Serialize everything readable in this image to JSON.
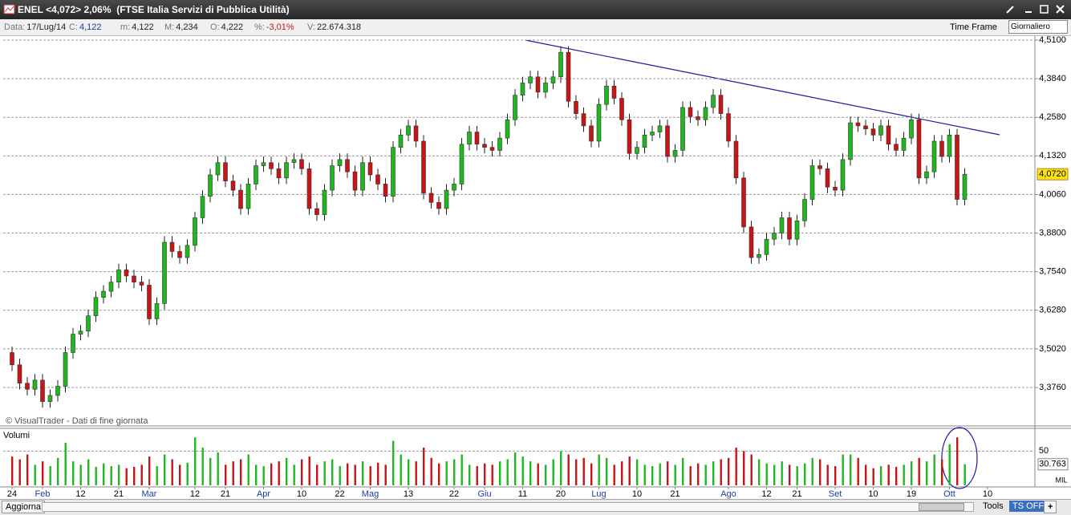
{
  "window": {
    "title": "ENEL <4,072> 2,06%  (FTSE Italia Servizi di Pubblica Utilità)"
  },
  "toolbar": {
    "items": [
      {
        "label": "Data:",
        "value": "17/Lug/14"
      },
      {
        "label": "C:",
        "value": "4,122"
      },
      {
        "label": "m:",
        "value": "4,122"
      },
      {
        "label": "M:",
        "value": "4,234"
      },
      {
        "label": "O:",
        "value": "4,222"
      },
      {
        "label": "%:",
        "value": "-3,01%"
      },
      {
        "label": "V:",
        "value": "22.674.318"
      }
    ],
    "time_frame_label": "Time Frame",
    "time_frame": "Giornaliero"
  },
  "bottom_bar": {
    "refresh": "Aggiorna",
    "tools": "Tools",
    "ts": "TS OFF",
    "add": "+"
  },
  "chart_data": {
    "type": "candlestick",
    "credit": "© VisualTrader - Dati di fine giornata",
    "categories": [
      "24",
      null,
      null,
      null,
      "Feb",
      null,
      null,
      null,
      null,
      "12",
      null,
      null,
      null,
      null,
      "21",
      null,
      null,
      null,
      "Mar",
      null,
      null,
      null,
      null,
      null,
      "12",
      null,
      null,
      null,
      "21",
      null,
      null,
      null,
      null,
      "Apr",
      null,
      null,
      null,
      null,
      "10",
      null,
      null,
      null,
      null,
      "22",
      null,
      null,
      null,
      "Mag",
      null,
      null,
      null,
      null,
      "13",
      null,
      null,
      null,
      null,
      null,
      "22",
      null,
      null,
      null,
      "Giu",
      null,
      null,
      null,
      null,
      "11",
      null,
      null,
      null,
      null,
      "20",
      null,
      null,
      null,
      null,
      "Lug",
      null,
      null,
      null,
      null,
      "10",
      null,
      null,
      null,
      null,
      "21",
      null,
      null,
      null,
      null,
      null,
      null,
      "Ago",
      null,
      null,
      null,
      null,
      "12",
      null,
      null,
      null,
      "21",
      null,
      null,
      null,
      null,
      "Set",
      null,
      null,
      null,
      null,
      "10",
      null,
      null,
      null,
      null,
      "19",
      null,
      null,
      null,
      null,
      "Ott",
      null,
      null,
      null,
      null,
      "10"
    ],
    "open": [
      3.49,
      3.45,
      3.39,
      3.37,
      3.4,
      3.33,
      3.35,
      3.38,
      3.49,
      3.55,
      3.56,
      3.61,
      3.67,
      3.69,
      3.72,
      3.76,
      3.74,
      3.72,
      3.71,
      3.6,
      3.65,
      3.85,
      3.82,
      3.8,
      3.84,
      3.93,
      4.0,
      4.07,
      4.11,
      4.05,
      4.02,
      3.96,
      4.04,
      4.1,
      4.11,
      4.09,
      4.06,
      4.11,
      4.12,
      4.09,
      3.96,
      3.94,
      4.02,
      4.1,
      4.12,
      4.08,
      4.02,
      4.11,
      4.07,
      4.04,
      4.0,
      4.16,
      4.2,
      4.23,
      4.18,
      4.01,
      3.98,
      3.96,
      4.02,
      4.04,
      4.17,
      4.21,
      4.17,
      4.16,
      4.15,
      4.19,
      4.25,
      4.33,
      4.37,
      4.39,
      4.34,
      4.37,
      4.39,
      4.47,
      4.31,
      4.27,
      4.23,
      4.18,
      4.3,
      4.36,
      4.32,
      4.25,
      4.14,
      4.16,
      4.2,
      4.21,
      4.23,
      4.13,
      4.15,
      4.29,
      4.26,
      4.25,
      4.29,
      4.33,
      4.27,
      4.18,
      4.06,
      3.9,
      3.8,
      3.81,
      3.86,
      3.88,
      3.93,
      3.86,
      3.92,
      3.99,
      4.1,
      4.09,
      4.03,
      4.02,
      4.12,
      4.24,
      4.23,
      4.22,
      4.2,
      4.23,
      4.17,
      4.15,
      4.19,
      4.25,
      4.06,
      4.08,
      4.18,
      4.13,
      4.2,
      3.99,
      null,
      null,
      null
    ],
    "high": [
      3.51,
      3.47,
      3.41,
      3.42,
      3.42,
      3.37,
      3.4,
      3.51,
      3.57,
      3.58,
      3.63,
      3.69,
      3.71,
      3.74,
      3.78,
      3.78,
      3.76,
      3.74,
      3.73,
      3.67,
      3.87,
      3.87,
      3.84,
      3.86,
      3.95,
      4.02,
      4.09,
      4.13,
      4.13,
      4.07,
      4.04,
      4.06,
      4.12,
      4.13,
      4.13,
      4.11,
      4.13,
      4.14,
      4.14,
      4.11,
      3.98,
      4.04,
      4.12,
      4.14,
      4.14,
      4.1,
      4.13,
      4.13,
      4.09,
      4.06,
      4.18,
      4.22,
      4.25,
      4.25,
      4.2,
      4.03,
      4.0,
      4.04,
      4.06,
      4.19,
      4.23,
      4.23,
      4.19,
      4.18,
      4.21,
      4.27,
      4.35,
      4.39,
      4.41,
      4.41,
      4.39,
      4.41,
      4.49,
      4.49,
      4.33,
      4.29,
      4.25,
      4.32,
      4.38,
      4.38,
      4.34,
      4.27,
      4.18,
      4.22,
      4.23,
      4.25,
      4.25,
      4.17,
      4.31,
      4.31,
      4.28,
      4.31,
      4.35,
      4.35,
      4.29,
      4.2,
      4.08,
      3.92,
      3.83,
      3.88,
      3.9,
      3.95,
      3.95,
      3.94,
      4.01,
      4.12,
      4.12,
      4.11,
      4.05,
      4.14,
      4.26,
      4.26,
      4.25,
      4.24,
      4.25,
      4.25,
      4.19,
      4.21,
      4.27,
      4.27,
      4.1,
      4.2,
      4.2,
      4.22,
      4.22,
      4.092,
      null,
      null,
      null
    ],
    "low": [
      3.43,
      3.37,
      3.35,
      3.35,
      3.31,
      3.31,
      3.33,
      3.36,
      3.47,
      3.53,
      3.54,
      3.59,
      3.65,
      3.67,
      3.7,
      3.72,
      3.7,
      3.69,
      3.58,
      3.58,
      3.63,
      3.8,
      3.78,
      3.78,
      3.82,
      3.91,
      3.98,
      4.05,
      4.03,
      4.0,
      3.94,
      3.94,
      4.02,
      4.08,
      4.07,
      4.04,
      4.04,
      4.09,
      4.07,
      3.94,
      3.92,
      3.92,
      4.0,
      4.08,
      4.06,
      4.0,
      4.0,
      4.05,
      4.02,
      3.98,
      3.98,
      4.14,
      4.18,
      4.16,
      3.99,
      3.96,
      3.94,
      3.94,
      4.0,
      4.02,
      4.15,
      4.15,
      4.14,
      4.13,
      4.13,
      4.17,
      4.23,
      4.31,
      4.35,
      4.32,
      4.32,
      4.35,
      4.37,
      4.29,
      4.25,
      4.21,
      4.16,
      4.16,
      4.28,
      4.3,
      4.23,
      4.12,
      4.12,
      4.14,
      4.18,
      4.19,
      4.11,
      4.11,
      4.13,
      4.24,
      4.23,
      4.23,
      4.27,
      4.25,
      4.16,
      4.04,
      3.88,
      3.78,
      3.78,
      3.79,
      3.84,
      3.86,
      3.84,
      3.84,
      3.9,
      3.97,
      4.07,
      4.01,
      4.0,
      4.0,
      4.1,
      4.21,
      4.2,
      4.18,
      4.18,
      4.15,
      4.13,
      4.13,
      4.17,
      4.04,
      4.04,
      4.06,
      4.11,
      4.11,
      3.97,
      3.97,
      null,
      null,
      null
    ],
    "close": [
      3.45,
      3.39,
      3.37,
      3.4,
      3.33,
      3.35,
      3.38,
      3.49,
      3.55,
      3.56,
      3.61,
      3.67,
      3.69,
      3.72,
      3.76,
      3.74,
      3.72,
      3.71,
      3.6,
      3.65,
      3.85,
      3.82,
      3.8,
      3.84,
      3.93,
      4.0,
      4.07,
      4.11,
      4.05,
      4.02,
      3.96,
      4.04,
      4.1,
      4.11,
      4.09,
      4.06,
      4.11,
      4.12,
      4.09,
      3.96,
      3.94,
      4.02,
      4.1,
      4.12,
      4.08,
      4.02,
      4.11,
      4.07,
      4.04,
      4.0,
      4.16,
      4.2,
      4.23,
      4.18,
      4.01,
      3.98,
      3.96,
      4.02,
      4.04,
      4.17,
      4.21,
      4.17,
      4.16,
      4.15,
      4.19,
      4.25,
      4.33,
      4.37,
      4.39,
      4.34,
      4.37,
      4.39,
      4.47,
      4.31,
      4.27,
      4.23,
      4.18,
      4.3,
      4.36,
      4.32,
      4.25,
      4.14,
      4.16,
      4.2,
      4.21,
      4.23,
      4.13,
      4.15,
      4.29,
      4.26,
      4.25,
      4.29,
      4.33,
      4.27,
      4.18,
      4.06,
      3.9,
      3.8,
      3.81,
      3.86,
      3.88,
      3.93,
      3.86,
      3.92,
      3.99,
      4.1,
      4.09,
      4.03,
      4.02,
      4.12,
      4.24,
      4.23,
      4.22,
      4.2,
      4.23,
      4.17,
      4.15,
      4.19,
      4.25,
      4.06,
      4.08,
      4.18,
      4.13,
      4.2,
      3.99,
      4.072,
      null,
      null,
      null
    ],
    "up_color": "#1fb81f",
    "down_color": "#c81414",
    "ylim": [
      3.253,
      4.523
    ],
    "yticks": [
      {
        "value": 3.376,
        "label": "3,3760"
      },
      {
        "value": 3.502,
        "label": "3,5020"
      },
      {
        "value": 3.628,
        "label": "3,6280"
      },
      {
        "value": 3.754,
        "label": "3,7540"
      },
      {
        "value": 3.88,
        "label": "3,8800"
      },
      {
        "value": 4.006,
        "label": "4,0060"
      },
      {
        "value": 4.132,
        "label": "4,1320"
      },
      {
        "value": 4.258,
        "label": "4,2580"
      },
      {
        "value": 4.384,
        "label": "4,3840"
      },
      {
        "value": 4.51,
        "label": "4,5100"
      }
    ],
    "grid": true,
    "last_price": {
      "value": 4.072,
      "label": "4,0720"
    },
    "volume": {
      "title": "Volumi",
      "unit": "MIL",
      "ylim": [
        0,
        82
      ],
      "yticks": [
        50
      ],
      "last_value": {
        "value": 30.763,
        "label": "30.763"
      },
      "values": [
        42,
        38,
        45,
        30,
        35,
        28,
        40,
        62,
        35,
        30,
        38,
        27,
        32,
        28,
        30,
        25,
        27,
        30,
        42,
        28,
        45,
        38,
        30,
        33,
        70,
        55,
        40,
        48,
        30,
        35,
        38,
        45,
        30,
        28,
        32,
        35,
        40,
        30,
        38,
        42,
        30,
        35,
        38,
        28,
        32,
        30,
        35,
        28,
        33,
        30,
        65,
        45,
        38,
        35,
        55,
        40,
        32,
        35,
        38,
        45,
        30,
        28,
        32,
        30,
        35,
        38,
        48,
        42,
        35,
        32,
        30,
        38,
        50,
        45,
        38,
        40,
        32,
        45,
        40,
        30,
        35,
        42,
        38,
        30,
        28,
        32,
        35,
        30,
        40,
        28,
        32,
        30,
        35,
        38,
        40,
        55,
        50,
        45,
        38,
        32,
        30,
        35,
        30,
        28,
        32,
        40,
        38,
        30,
        28,
        45,
        45,
        40,
        30,
        25,
        28,
        30,
        27,
        30,
        35,
        40,
        35,
        45,
        38,
        60,
        70,
        30.763,
        null,
        null,
        null
      ]
    }
  }
}
